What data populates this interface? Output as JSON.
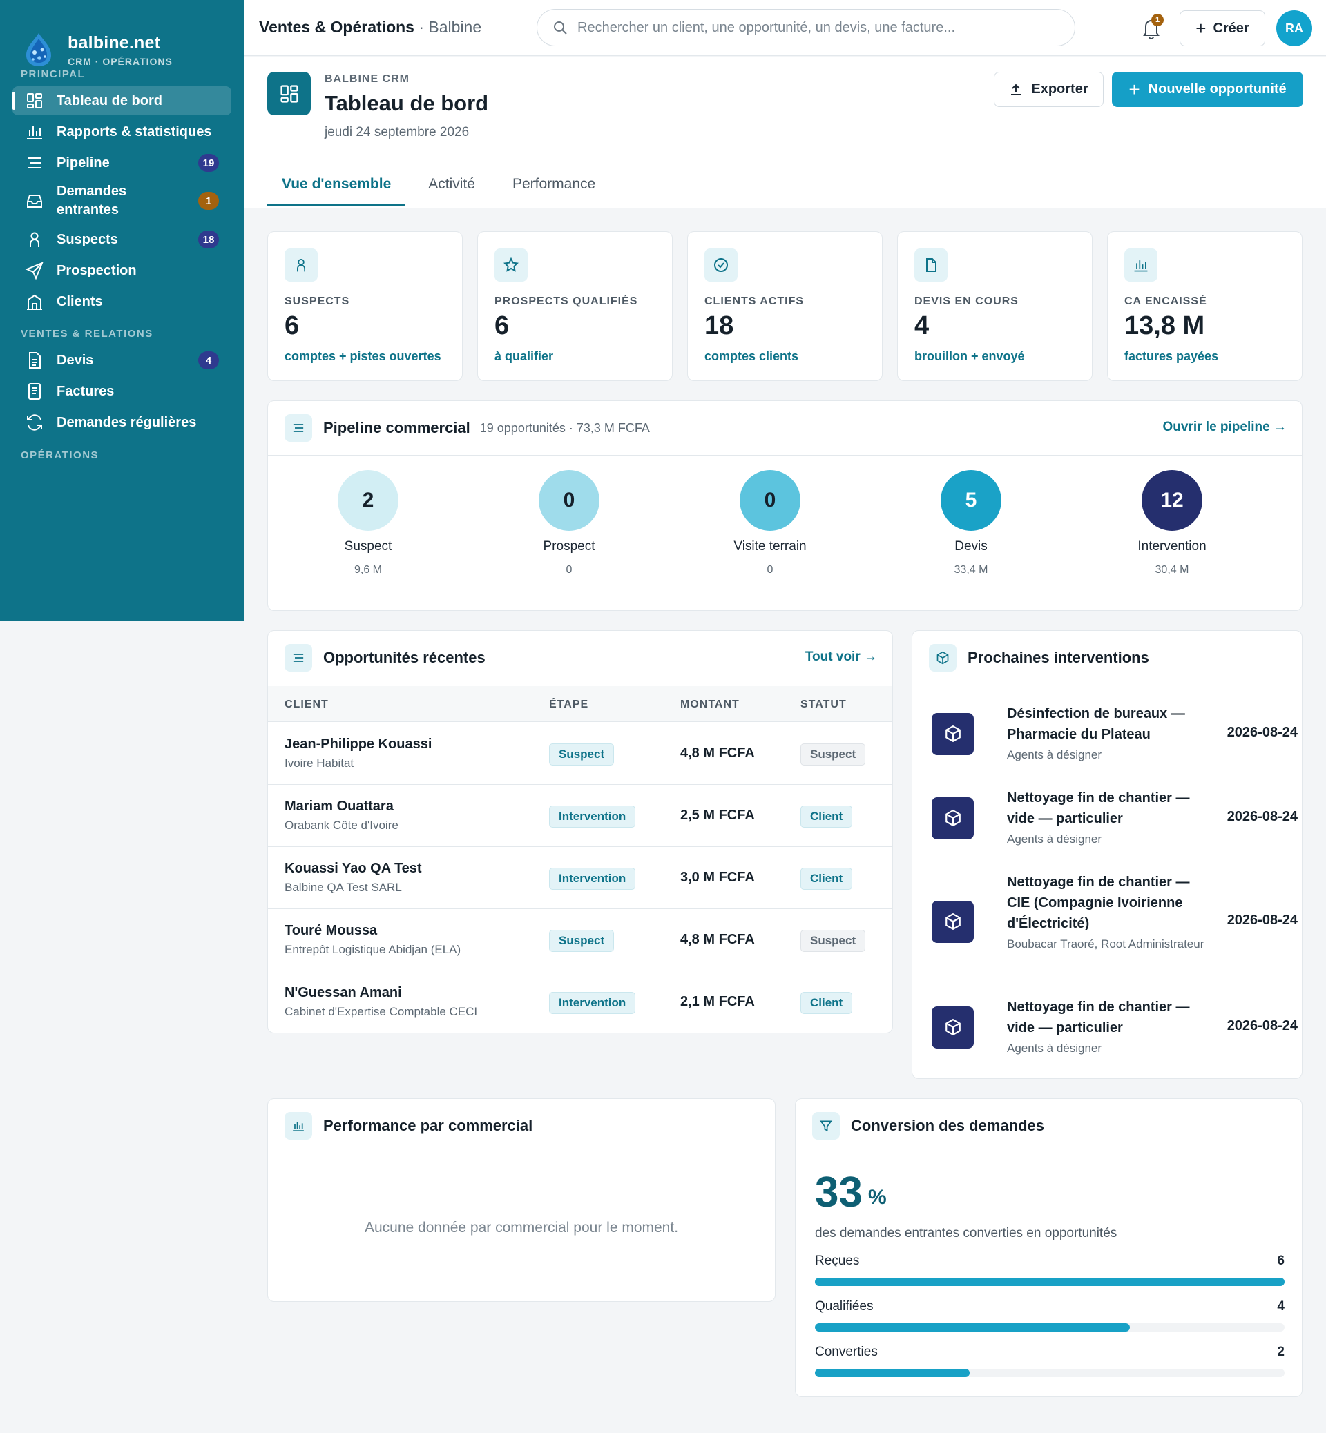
{
  "brand": {
    "name": "balbine.net",
    "sub": "CRM · OPÉRATIONS"
  },
  "sidebar": {
    "sections": [
      "PRINCIPAL",
      "VENTES & RELATIONS",
      "OPÉRATIONS"
    ],
    "items": [
      {
        "label": "Tableau de bord",
        "icon": "dashboard-icon",
        "badge": ""
      },
      {
        "label": "Rapports & statistiques",
        "icon": "bar-chart-icon",
        "badge": ""
      },
      {
        "label": "Pipeline",
        "icon": "list-icon",
        "badge": "19"
      },
      {
        "label": "Demandes entrantes",
        "icon": "inbox-icon",
        "badge": "1"
      },
      {
        "label": "Suspects",
        "icon": "person-icon",
        "badge": "18"
      },
      {
        "label": "Prospection",
        "icon": "send-icon",
        "badge": ""
      },
      {
        "label": "Clients",
        "icon": "building-icon",
        "badge": ""
      },
      {
        "label": "Devis",
        "icon": "document-icon",
        "badge": "4"
      },
      {
        "label": "Factures",
        "icon": "invoice-icon",
        "badge": ""
      },
      {
        "label": "Demandes régulières",
        "icon": "refresh-icon",
        "badge": ""
      }
    ]
  },
  "topbar": {
    "title": "Ventes & Opérations",
    "subtitle": "· Balbine",
    "search_placeholder": "Rechercher un client, une opportunité, un devis, une facture...",
    "notif_count": "1",
    "create_label": "Créer",
    "avatar_initials": "RA"
  },
  "header": {
    "kicker": "BALBINE CRM",
    "title": "Tableau de bord",
    "date": "jeudi 24 septembre 2026",
    "export_label": "Exporter",
    "new_label": "Nouvelle opportunité",
    "tabs": [
      "Vue d'ensemble",
      "Activité",
      "Performance"
    ]
  },
  "kpis": [
    {
      "label": "SUSPECTS",
      "value": "6",
      "sub": "comptes + pistes ouvertes",
      "icon": "person-icon"
    },
    {
      "label": "PROSPECTS QUALIFIÉS",
      "value": "6",
      "sub": "à qualifier",
      "icon": "star-icon"
    },
    {
      "label": "CLIENTS ACTIFS",
      "value": "18",
      "sub": "comptes clients",
      "icon": "check-circle-icon"
    },
    {
      "label": "DEVIS EN COURS",
      "value": "4",
      "sub": "brouillon + envoyé",
      "icon": "file-icon"
    },
    {
      "label": "CA ENCAISSÉ",
      "value": "13,8 M",
      "sub": "factures payées",
      "icon": "bar-chart-icon"
    }
  ],
  "pipeline": {
    "title": "Pipeline commercial",
    "subtitle": "19 opportunités · 73,3 M FCFA",
    "link": "Ouvrir le pipeline →",
    "stages": [
      {
        "count": "2",
        "name": "Suspect",
        "amount": "9,6 M",
        "bg": "#d2eef4",
        "fg": "#16212b"
      },
      {
        "count": "0",
        "name": "Prospect",
        "amount": "0",
        "bg": "#9fdceb",
        "fg": "#16212b"
      },
      {
        "count": "0",
        "name": "Visite terrain",
        "amount": "0",
        "bg": "#5cc4de",
        "fg": "#16212b"
      },
      {
        "count": "5",
        "name": "Devis",
        "amount": "33,4 M",
        "bg": "#1aa2c7",
        "fg": "#ffffff"
      },
      {
        "count": "12",
        "name": "Intervention",
        "amount": "30,4 M",
        "bg": "#252f6e",
        "fg": "#ffffff"
      }
    ]
  },
  "opportunities": {
    "title": "Opportunités récentes",
    "link": "Tout voir →",
    "columns": [
      "CLIENT",
      "ÉTAPE",
      "MONTANT",
      "STATUT"
    ],
    "rows": [
      {
        "name": "Jean-Philippe Kouassi",
        "company": "Ivoire Habitat",
        "stage": "Suspect",
        "amount": "4,8 M FCFA",
        "status": "Suspect",
        "status_style": "grey"
      },
      {
        "name": "Mariam Ouattara",
        "company": "Orabank Côte d'Ivoire",
        "stage": "Intervention",
        "amount": "2,5 M FCFA",
        "status": "Client",
        "status_style": "teal"
      },
      {
        "name": "Kouassi Yao QA Test",
        "company": "Balbine QA Test SARL",
        "stage": "Intervention",
        "amount": "3,0 M FCFA",
        "status": "Client",
        "status_style": "teal"
      },
      {
        "name": "Touré Moussa",
        "company": "Entrepôt Logistique Abidjan (ELA)",
        "stage": "Suspect",
        "amount": "4,8 M FCFA",
        "status": "Suspect",
        "status_style": "grey"
      },
      {
        "name": "N'Guessan Amani",
        "company": "Cabinet d'Expertise Comptable CECI",
        "stage": "Intervention",
        "amount": "2,1 M FCFA",
        "status": "Client",
        "status_style": "teal"
      }
    ]
  },
  "interventions": {
    "title": "Prochaines interventions",
    "items": [
      {
        "title": "Désinfection de bureaux — Pharmacie du Plateau",
        "sub": "Agents à désigner",
        "date": "2026-08-24"
      },
      {
        "title": "Nettoyage fin de chantier — vide — particulier",
        "sub": "Agents à désigner",
        "date": "2026-08-24"
      },
      {
        "title": "Nettoyage fin de chantier — CIE (Compagnie Ivoirienne d'Électricité)",
        "sub": "Boubacar Traoré, Root Administrateur",
        "date": "2026-08-24"
      },
      {
        "title": "Nettoyage fin de chantier — vide — particulier",
        "sub": "Agents à désigner",
        "date": "2026-08-24"
      }
    ]
  },
  "performance": {
    "title": "Performance par commercial",
    "empty": "Aucune donnée par commercial pour le moment."
  },
  "conversion": {
    "title": "Conversion des demandes",
    "rate": "33",
    "unit": "%",
    "description": "des demandes entrantes converties en opportunités",
    "bars": [
      {
        "label": "Reçues",
        "value": 6,
        "fraction": 1.0
      },
      {
        "label": "Qualifiées",
        "value": 4,
        "fraction": 0.67
      },
      {
        "label": "Converties",
        "value": 2,
        "fraction": 0.33
      }
    ]
  },
  "colors": {
    "primary": "#0e7389",
    "accent": "#159fc7",
    "navy": "#252f6e",
    "amber": "#a4620e"
  }
}
